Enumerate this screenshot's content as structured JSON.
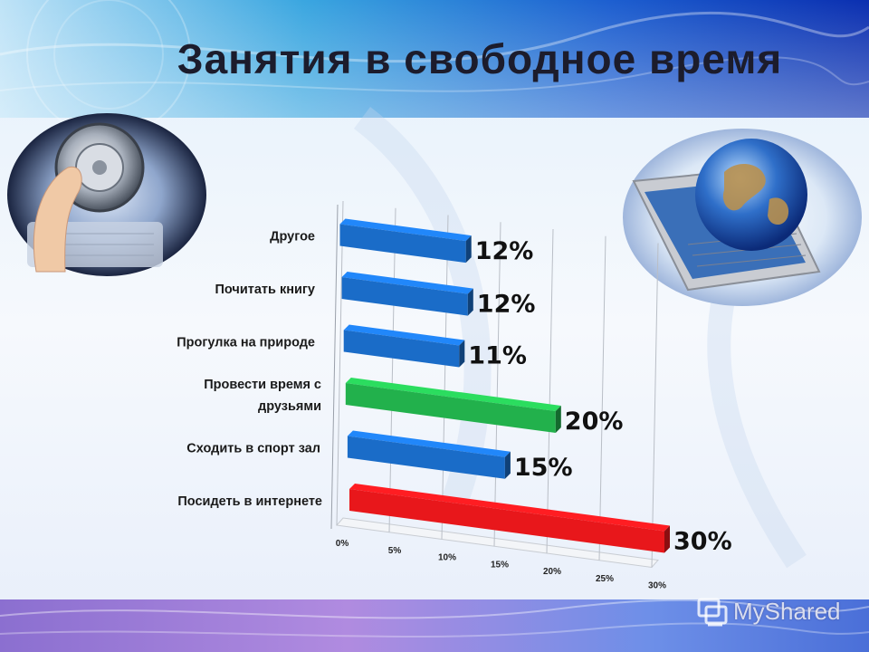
{
  "slide": {
    "title": "Занятия в свободное время",
    "watermark": "MyShared"
  },
  "colors": {
    "blue": "#1a6cc8",
    "green": "#22b14c",
    "red": "#e8171b"
  },
  "chart_data": {
    "type": "bar",
    "orientation": "horizontal-3d",
    "categories": [
      "Другое",
      "Почитать книгу",
      "Прогулка на природе",
      "Провести время с друзьями",
      "Сходить в спорт зал",
      "Посидеть в интернете"
    ],
    "category_lines": [
      [
        "Другое"
      ],
      [
        "Почитать книгу"
      ],
      [
        "Прогулка на природе"
      ],
      [
        "Провести время  с",
        "друзьями"
      ],
      [
        "Сходить в спорт зал"
      ],
      [
        "Посидеть в интернете"
      ]
    ],
    "values": [
      12,
      12,
      11,
      20,
      15,
      30
    ],
    "value_labels": [
      "12%",
      "12%",
      "11%",
      "20%",
      "15%",
      "30%"
    ],
    "bar_colors": [
      "blue",
      "blue",
      "blue",
      "green",
      "blue",
      "red"
    ],
    "xlim": [
      0,
      30
    ],
    "x_ticks": [
      "0%",
      "5%",
      "10%",
      "15%",
      "20%",
      "25%",
      "30%"
    ],
    "grid": true,
    "legend": "none"
  }
}
